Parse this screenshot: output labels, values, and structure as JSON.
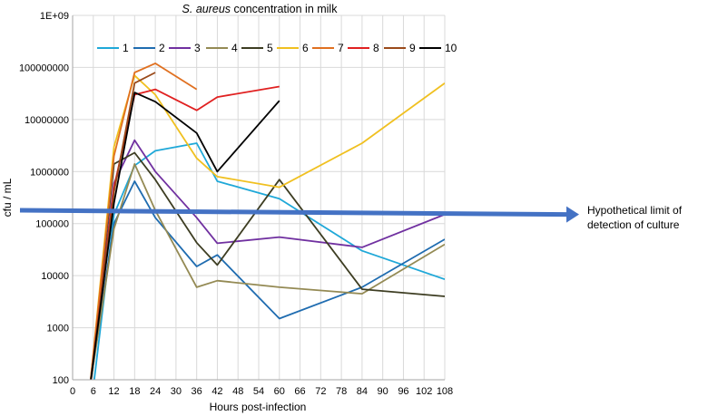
{
  "chart_data": {
    "type": "line",
    "title_italic": "S. aureus",
    "title_rest": " concentration in milk",
    "xlabel": "Hours post-infection",
    "ylabel": "cfu / mL",
    "x_ticks": [
      0,
      6,
      12,
      18,
      24,
      30,
      36,
      42,
      48,
      54,
      60,
      66,
      72,
      78,
      84,
      90,
      96,
      102,
      108
    ],
    "xlim": [
      0,
      108
    ],
    "y_scale": "log",
    "y_ticks": [
      100,
      1000,
      10000,
      100000,
      1000000,
      10000000,
      100000000,
      1000000000
    ],
    "y_tick_labels": [
      "100",
      "1000",
      "10000",
      "100000",
      "1000000",
      "10000000",
      "100000000",
      "1E+09"
    ],
    "ylim": [
      100,
      1000000000
    ],
    "annotation": {
      "lines": [
        "Hypothetical limit of",
        "detection of culture"
      ],
      "y_start": 180000,
      "y_end": 150000
    },
    "series": [
      {
        "name": "1",
        "color": "#1fa8d8",
        "x": [
          6,
          12,
          18,
          24,
          36,
          42,
          60,
          84,
          108
        ],
        "y": [
          70,
          150000,
          1300000,
          2500000,
          3500000,
          650000,
          300000,
          30000,
          8500
        ]
      },
      {
        "name": "2",
        "color": "#1f6cb0",
        "x": [
          5,
          12,
          18,
          24,
          36,
          42,
          60,
          84,
          108
        ],
        "y": [
          70,
          100000,
          650000,
          130000,
          15000,
          25000,
          1500,
          6000,
          50000
        ]
      },
      {
        "name": "3",
        "color": "#7030a0",
        "x": [
          5,
          12,
          18,
          24,
          36,
          42,
          60,
          84,
          108
        ],
        "y": [
          70,
          600000,
          4000000,
          1000000,
          130000,
          42000,
          55000,
          35000,
          150000
        ]
      },
      {
        "name": "4",
        "color": "#948a54",
        "x": [
          5,
          12,
          18,
          24,
          36,
          42,
          60,
          84,
          108
        ],
        "y": [
          70,
          80000,
          1400000,
          180000,
          6000,
          8000,
          6000,
          4500,
          40000
        ]
      },
      {
        "name": "5",
        "color": "#3d3d22",
        "x": [
          5,
          12,
          18,
          24,
          36,
          42,
          60,
          84,
          108
        ],
        "y": [
          70,
          1400000,
          2300000,
          700000,
          43000,
          16000,
          700000,
          5500,
          4000
        ]
      },
      {
        "name": "6",
        "color": "#f0c020",
        "x": [
          5,
          12,
          18,
          24,
          36,
          42,
          60,
          84,
          108
        ],
        "y": [
          70,
          3000000,
          70000000,
          30000000,
          1800000,
          800000,
          500000,
          3500000,
          50000000
        ]
      },
      {
        "name": "7",
        "color": "#e07020",
        "x": [
          5,
          12,
          18,
          24,
          36
        ],
        "y": [
          70,
          2000000,
          80000000,
          120000000,
          38000000
        ]
      },
      {
        "name": "8",
        "color": "#e02020",
        "x": [
          5,
          12,
          18,
          24,
          36,
          42,
          60
        ],
        "y": [
          70,
          500000,
          30000000,
          38000000,
          15000000,
          27000000,
          43000000
        ]
      },
      {
        "name": "9",
        "color": "#9a4a1a",
        "x": [
          5,
          12,
          18,
          24
        ],
        "y": [
          70,
          400000,
          50000000,
          80000000
        ]
      },
      {
        "name": "10",
        "color": "#000000",
        "x": [
          5,
          12,
          18,
          24,
          36,
          42,
          60
        ],
        "y": [
          70,
          250000,
          33000000,
          22000000,
          5500000,
          1000000,
          23000000
        ]
      }
    ]
  }
}
